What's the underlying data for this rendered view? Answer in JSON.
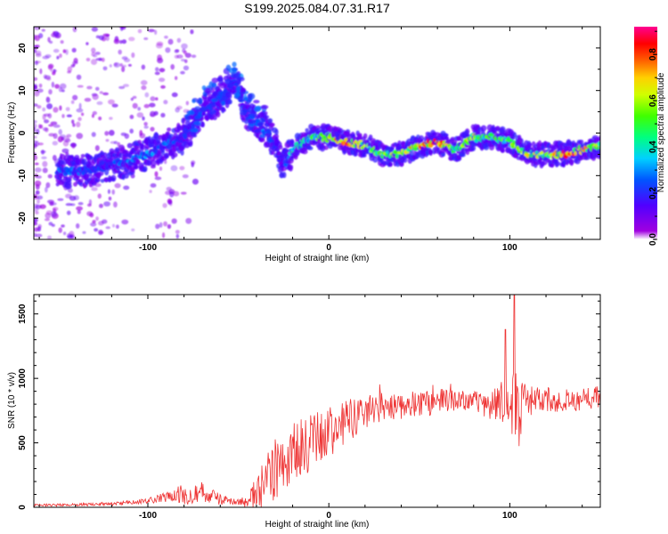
{
  "chart_data": [
    {
      "type": "heatmap",
      "title": "S199.2025.084.07.31.R17",
      "xlabel": "Height of straight line (km)",
      "ylabel": "Frequency (Hz)",
      "xlim": [
        -163,
        150
      ],
      "ylim": [
        -25,
        25
      ],
      "x_ticks": [
        -100,
        0,
        100
      ],
      "y_ticks": [
        20,
        10,
        0,
        -10,
        -20
      ],
      "colorbar": {
        "label": "Normalized spectral amplitude",
        "range": [
          0,
          0.92
        ],
        "ticks": [
          0.0,
          0.2,
          0.4,
          0.6,
          0.8
        ],
        "colormap": "rainbow (purple→blue→cyan→green→yellow→orange→red→magenta)"
      },
      "ridge": {
        "x": [
          -140,
          -130,
          -120,
          -110,
          -100,
          -90,
          -80,
          -70,
          -60,
          -52,
          -45,
          -38,
          -30,
          -25,
          -20,
          -10,
          0,
          10,
          20,
          30,
          40,
          50,
          60,
          70,
          80,
          90,
          100,
          110,
          120,
          130,
          140,
          150
        ],
        "freq": [
          -9,
          -8.5,
          -7.5,
          -6.5,
          -5,
          -3,
          -1,
          5,
          8,
          12,
          4,
          2,
          -2,
          -8,
          -4,
          -1,
          -1,
          -2,
          -3,
          -5,
          -5,
          -3,
          -2,
          -4,
          -1,
          -1,
          -2,
          -5,
          -5,
          -5,
          -4,
          -3
        ],
        "amplitude": [
          0.25,
          0.2,
          0.22,
          0.28,
          0.3,
          0.25,
          0.2,
          0.2,
          0.2,
          0.25,
          0.2,
          0.3,
          0.2,
          0.15,
          0.4,
          0.45,
          0.55,
          0.8,
          0.55,
          0.5,
          0.55,
          0.75,
          0.85,
          0.5,
          0.55,
          0.45,
          0.5,
          0.6,
          0.55,
          0.8,
          0.7,
          0.5
        ]
      }
    },
    {
      "type": "line",
      "xlabel": "Height of straight line (km)",
      "ylabel": "SNR (10 * v/v)",
      "xlim": [
        -163,
        150
      ],
      "ylim": [
        0,
        1650
      ],
      "x_ticks": [
        -100,
        0,
        100
      ],
      "y_ticks": [
        0,
        500,
        1000,
        1500
      ],
      "color": "#ee3333",
      "envelope": {
        "x": [
          -163,
          -120,
          -100,
          -90,
          -80,
          -70,
          -60,
          -50,
          -40,
          -35,
          -30,
          -20,
          -10,
          0,
          10,
          20,
          30,
          40,
          50,
          60,
          70,
          80,
          90,
          100,
          102,
          110,
          120,
          130,
          140,
          150
        ],
        "base": [
          15,
          25,
          50,
          80,
          100,
          120,
          60,
          40,
          100,
          200,
          300,
          400,
          500,
          580,
          650,
          750,
          780,
          800,
          800,
          820,
          830,
          820,
          800,
          780,
          750,
          820,
          830,
          830,
          840,
          850
        ],
        "amp": [
          10,
          12,
          20,
          40,
          80,
          80,
          40,
          20,
          150,
          200,
          250,
          250,
          250,
          200,
          180,
          150,
          120,
          120,
          100,
          100,
          80,
          80,
          120,
          250,
          450,
          120,
          100,
          90,
          90,
          90
        ]
      }
    }
  ]
}
